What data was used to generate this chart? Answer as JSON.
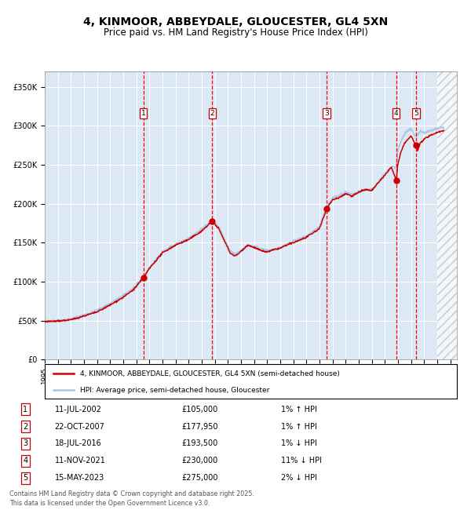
{
  "title": "4, KINMOOR, ABBEYDALE, GLOUCESTER, GL4 5XN",
  "subtitle": "Price paid vs. HM Land Registry's House Price Index (HPI)",
  "title_fontsize": 10,
  "subtitle_fontsize": 8.5,
  "xlim": [
    1995.0,
    2026.5
  ],
  "ylim": [
    0,
    370000
  ],
  "yticks": [
    0,
    50000,
    100000,
    150000,
    200000,
    250000,
    300000,
    350000
  ],
  "ytick_labels": [
    "£0",
    "£50K",
    "£100K",
    "£150K",
    "£200K",
    "£250K",
    "£300K",
    "£350K"
  ],
  "hpi_color": "#aec6e8",
  "price_color": "#cc0000",
  "sale_marker_color": "#cc0000",
  "sale_marker_size": 5,
  "vline_color": "#ff0000",
  "background_color": "#dce9f5",
  "grid_color": "#ffffff",
  "legend_box_color": "#cc0000",
  "sales": [
    {
      "num": 1,
      "date_year": 2002.54,
      "price": 105000,
      "label": "11-JUL-2002",
      "price_str": "£105,000",
      "pct": "1%",
      "dir": "↑"
    },
    {
      "num": 2,
      "date_year": 2007.81,
      "price": 177950,
      "label": "22-OCT-2007",
      "price_str": "£177,950",
      "pct": "1%",
      "dir": "↑"
    },
    {
      "num": 3,
      "date_year": 2016.54,
      "price": 193500,
      "label": "18-JUL-2016",
      "price_str": "£193,500",
      "pct": "1%",
      "dir": "↓"
    },
    {
      "num": 4,
      "date_year": 2021.87,
      "price": 230000,
      "label": "11-NOV-2021",
      "price_str": "£230,000",
      "pct": "11%",
      "dir": "↓"
    },
    {
      "num": 5,
      "date_year": 2023.37,
      "price": 275000,
      "label": "15-MAY-2023",
      "price_str": "£275,000",
      "pct": "2%",
      "dir": "↓"
    }
  ],
  "legend1_label": "4, KINMOOR, ABBEYDALE, GLOUCESTER, GL4 5XN (semi-detached house)",
  "legend2_label": "HPI: Average price, semi-detached house, Gloucester",
  "footer1": "Contains HM Land Registry data © Crown copyright and database right 2025.",
  "footer2": "This data is licensed under the Open Government Licence v3.0."
}
